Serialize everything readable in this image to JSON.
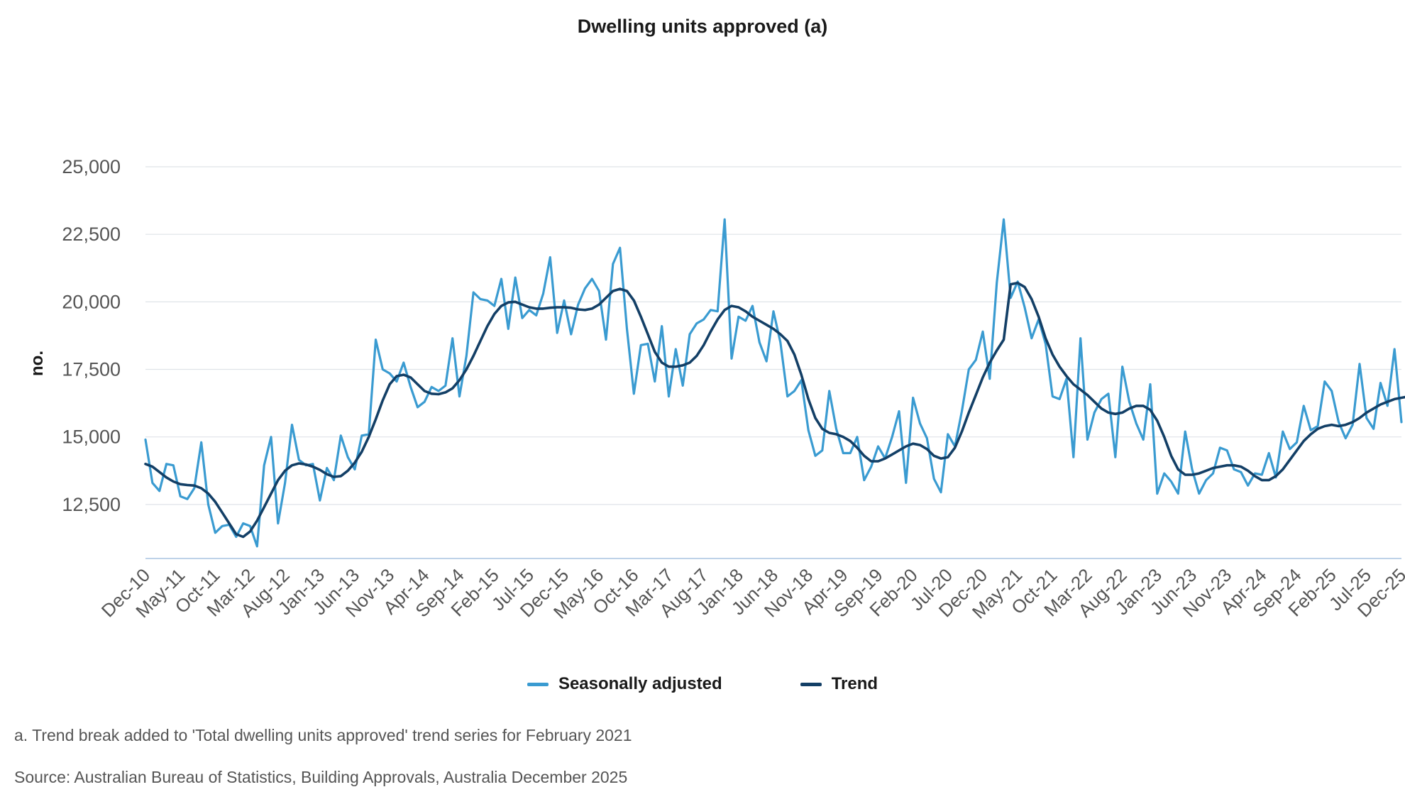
{
  "chart_data": {
    "type": "line",
    "title": "Dwelling units approved (a)",
    "ylabel": "no.",
    "xlabel": "",
    "ylim": [
      10500,
      25000
    ],
    "yticks": [
      12500,
      15000,
      17500,
      20000,
      22500,
      25000
    ],
    "ytick_labels": [
      "12,500",
      "15,000",
      "17,500",
      "20,000",
      "22,500",
      "25,000"
    ],
    "x_start": "Dec-10",
    "x_end": "Dec-25",
    "xtick_labels": [
      "Dec-10",
      "May-11",
      "Oct-11",
      "Mar-12",
      "Aug-12",
      "Jan-13",
      "Jun-13",
      "Nov-13",
      "Apr-14",
      "Sep-14",
      "Feb-15",
      "Jul-15",
      "Dec-15",
      "May-16",
      "Oct-16",
      "Mar-17",
      "Aug-17",
      "Jan-18",
      "Jun-18",
      "Nov-18",
      "Apr-19",
      "Sep-19",
      "Feb-20",
      "Jul-20",
      "Dec-20",
      "May-21",
      "Oct-21",
      "Mar-22",
      "Aug-22",
      "Jan-23",
      "Jun-23",
      "Nov-23",
      "Apr-24",
      "Sep-24",
      "Feb-25",
      "Jul-25",
      "Dec-25"
    ],
    "grid": true,
    "legend_position": "bottom",
    "series": [
      {
        "name": "Seasonally adjusted",
        "color": "#3a9bd1",
        "values": [
          14900,
          13300,
          13000,
          14000,
          13950,
          12800,
          12700,
          13100,
          14800,
          12500,
          11450,
          11700,
          11750,
          11300,
          11800,
          11700,
          10950,
          13950,
          15000,
          11800,
          13300,
          15450,
          14150,
          13950,
          14000,
          12650,
          13850,
          13400,
          15050,
          14250,
          13800,
          15050,
          15100,
          18600,
          17500,
          17350,
          17050,
          17750,
          16850,
          16100,
          16300,
          16850,
          16700,
          16900,
          18650,
          16500,
          18000,
          20350,
          20100,
          20050,
          19850,
          20850,
          19000,
          20900,
          19400,
          19700,
          19500,
          20300,
          21650,
          18850,
          20050,
          18800,
          19900,
          20500,
          20850,
          20400,
          18600,
          21400,
          22000,
          19000,
          16600,
          18400,
          18450,
          17050,
          19100,
          16500,
          18250,
          16900,
          18800,
          19200,
          19350,
          19700,
          19650,
          23050,
          17900,
          19450,
          19300,
          19850,
          18500,
          17800,
          19650,
          18500,
          16500,
          16700,
          17100,
          15250,
          14300,
          14500,
          16700,
          15300,
          14400,
          14400,
          15000,
          13400,
          13900,
          14650,
          14200,
          15000,
          15950,
          13300,
          16450,
          15500,
          14950,
          13450,
          12950,
          15100,
          14650,
          15950,
          17500,
          17850,
          18900,
          17150,
          20700,
          23050,
          20150,
          20750,
          19800,
          18650,
          19350,
          18450,
          16500,
          16400,
          17150,
          14250,
          18650,
          14900,
          15900,
          16400,
          16600,
          14250,
          17600,
          16300,
          15500,
          14900,
          16950,
          12900,
          13650,
          13350,
          12900,
          15200,
          13800,
          12900,
          13400,
          13650,
          14600,
          14500,
          13800,
          13700,
          13200,
          13650,
          13600,
          14400,
          13500,
          15200,
          14550,
          14800,
          16150,
          15250,
          15400,
          17050,
          16700,
          15550,
          14950,
          15450,
          17700,
          15700,
          15300,
          17000,
          16150,
          18250,
          15550
        ]
      },
      {
        "name": "Trend",
        "color": "#133f66",
        "values": [
          14000,
          13900,
          13700,
          13500,
          13350,
          13250,
          13220,
          13200,
          13100,
          12900,
          12600,
          12200,
          11800,
          11400,
          11300,
          11500,
          11900,
          12400,
          12900,
          13400,
          13750,
          13950,
          14020,
          13980,
          13900,
          13780,
          13620,
          13520,
          13550,
          13750,
          14050,
          14450,
          15000,
          15650,
          16350,
          16950,
          17250,
          17300,
          17200,
          16950,
          16700,
          16600,
          16580,
          16650,
          16800,
          17100,
          17500,
          18000,
          18550,
          19100,
          19550,
          19850,
          19980,
          20000,
          19900,
          19800,
          19750,
          19750,
          19780,
          19800,
          19800,
          19780,
          19720,
          19700,
          19750,
          19900,
          20150,
          20400,
          20480,
          20400,
          20050,
          19450,
          18800,
          18150,
          17750,
          17600,
          17600,
          17650,
          17750,
          18000,
          18400,
          18900,
          19350,
          19700,
          19850,
          19800,
          19650,
          19450,
          19300,
          19150,
          19000,
          18800,
          18550,
          18050,
          17300,
          16400,
          15700,
          15300,
          15150,
          15100,
          15000,
          14850,
          14600,
          14300,
          14100,
          14100,
          14200,
          14350,
          14500,
          14650,
          14750,
          14700,
          14550,
          14300,
          14200,
          14250,
          14600,
          15200,
          15900,
          16550,
          17200,
          17750,
          18200,
          18600,
          20650,
          20700,
          20550,
          20100,
          19450,
          18650,
          18050,
          17600,
          17250,
          16950,
          16750,
          16550,
          16300,
          16050,
          15900,
          15850,
          15900,
          16050,
          16150,
          16150,
          16000,
          15600,
          15000,
          14300,
          13800,
          13600,
          13600,
          13650,
          13750,
          13850,
          13900,
          13950,
          13950,
          13900,
          13750,
          13550,
          13400,
          13400,
          13550,
          13800,
          14150,
          14500,
          14850,
          15100,
          15300,
          15400,
          15450,
          15400,
          15450,
          15550,
          15700,
          15900,
          16050,
          16200,
          16300,
          16400,
          16450,
          16500,
          16500,
          16500
        ]
      }
    ]
  },
  "legend": {
    "items": [
      {
        "label": "Seasonally adjusted",
        "color": "#3a9bd1"
      },
      {
        "label": "Trend",
        "color": "#133f66"
      }
    ]
  },
  "notes": {
    "footnote": "a. Trend break added to 'Total dwelling units approved' trend series for February 2021",
    "source": "Source: Australian Bureau of Statistics, Building Approvals, Australia December 2025"
  }
}
